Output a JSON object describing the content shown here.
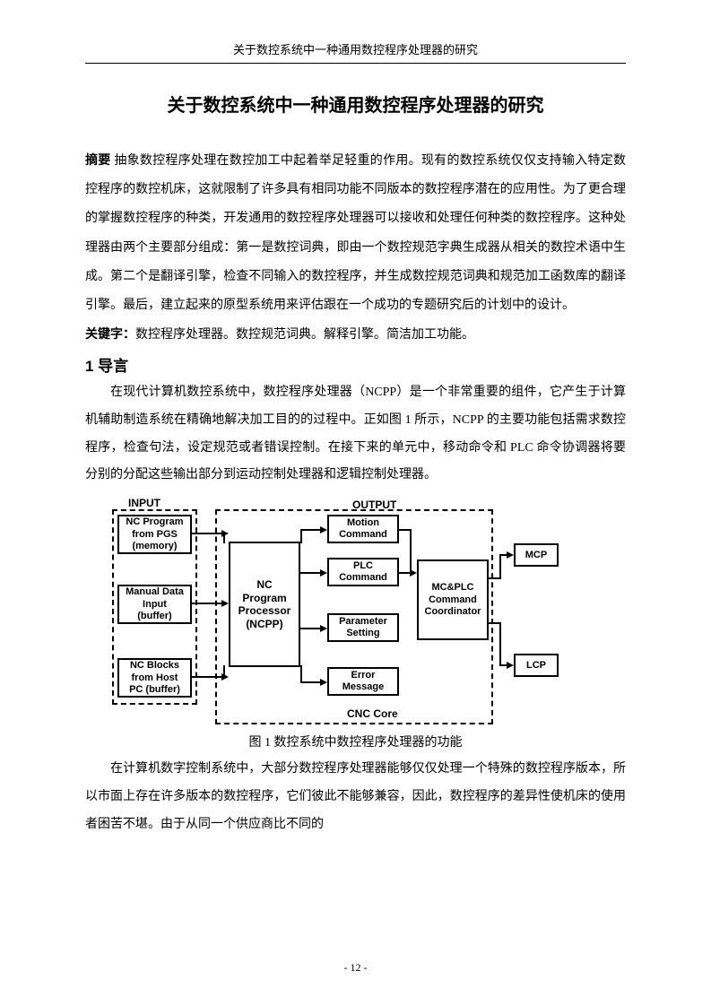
{
  "header": "关于数控系统中一种通用数控程序处理器的研究",
  "title": "关于数控系统中一种通用数控程序处理器的研究",
  "abstract": {
    "label": "摘要",
    "text": " 抽象数控程序处理在数控加工中起着举足轻重的作用。现有的数控系统仅仅支持输入特定数控程序的数控机床，这就限制了许多具有相同功能不同版本的数控程序潜在的应用性。为了更合理的掌握数控程序的种类，开发通用的数控程序处理器可以接收和处理任何种类的数控程序。这种处理器由两个主要部分组成：第一是数控词典，即由一个数控规范字典生成器从相关的数控术语中生成。第二个是翻译引擎，检查不同输入的数控程序，并生成数控规范词典和规范加工函数库的翻译引擎。最后，建立起来的原型系统用来评估跟在一个成功的专题研究后的计划中的设计。"
  },
  "keywords": {
    "label": "关键字：",
    "text": "数控程序处理器。数控规范词典。解释引擎。简洁加工功能。"
  },
  "section1": {
    "heading": "1 导言",
    "para1": "在现代计算机数控系统中，数控程序处理器（NCPP）是一个非常重要的组件，它产生于计算机辅助制造系统在精确地解决加工目的的过程中。正如图 1 所示，NCPP 的主要功能包括需求数控程序，检查句法，设定规范或者错误控制。在接下来的单元中，移动命令和 PLC 命令协调器将要分别的分配这些输出部分到运动控制处理器和逻辑控制处理器。",
    "para2": "在计算机数字控制系统中，大部分数控程序处理器能够仅仅处理一个特殊的数控程序版本，所以市面上存在许多版本的数控程序，它们彼此不能够兼容，因此，数控程序的差异性使机床的使用者困苦不堪。由于从同一个供应商比不同的"
  },
  "figure": {
    "caption": "图 1  数控系统中数控程序处理器的功能",
    "labels": {
      "input": "INPUT",
      "output": "OUTPUT",
      "cnc_core": "CNC Core"
    },
    "boxes": {
      "input1": "NC Program\nfrom PGS\n(memory)",
      "input2": "Manual Data\nInput\n(buffer)",
      "input3": "NC Blocks\nfrom Host\nPC (buffer)",
      "ncpp": "NC\nProgram\nProcessor\n(NCPP)",
      "out1": "Motion\nCommand",
      "out2": "PLC\nCommand",
      "out3": "Parameter\nSetting",
      "out4": "Error\nMessage",
      "coord": "MC&PLC\nCommand\nCoordinator",
      "mcp": "MCP",
      "lcp": "LCP"
    },
    "styling": {
      "box_border": "#000000",
      "box_bg": "#ffffff",
      "dashed_border": "#000000",
      "font_family": "Arial",
      "font_weight": "bold",
      "font_size": 11,
      "label_font_size": 12,
      "arrow_color": "#000000"
    }
  },
  "pageNumber": "- 12 -"
}
